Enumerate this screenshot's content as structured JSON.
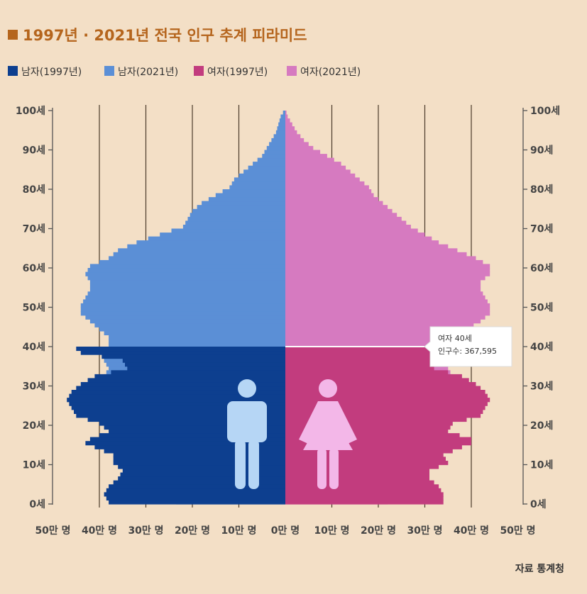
{
  "title": "1997년 · 2021년 전국 인구 추계 피라미드",
  "colors": {
    "background": "#f3dfc6",
    "title": "#b5651d",
    "male_1997": "#0d3f8f",
    "male_2021": "#5b8fd6",
    "female_1997": "#c23c7e",
    "female_2021": "#d67ac0",
    "male_icon": "#b6d6f5",
    "female_icon": "#f3b7e8",
    "gridline": "#4a3a2a"
  },
  "legend": [
    {
      "label": "남자(1997년)",
      "color_key": "male_1997"
    },
    {
      "label": "남자(2021년)",
      "color_key": "male_2021"
    },
    {
      "label": "여자(1997년)",
      "color_key": "female_1997"
    },
    {
      "label": "여자(2021년)",
      "color_key": "female_2021"
    }
  ],
  "tooltip": {
    "line1": "여자 40세",
    "line2": "인구수: 367,595",
    "age": 40
  },
  "source": "자료 통계청",
  "icons": {
    "male": "male-person-icon",
    "female": "female-person-icon"
  },
  "chart_data": {
    "type": "population-pyramid",
    "title": "1997년 · 2021년 전국 인구 추계 피라미드",
    "x_ticks": [
      "50만 명",
      "40만 명",
      "30만 명",
      "20만 명",
      "10만 명",
      "0만 명",
      "10만 명",
      "20만 명",
      "30만 명",
      "40만 명",
      "50만 명"
    ],
    "x_range_man": [
      -50,
      50
    ],
    "y_ticks": [
      "0세",
      "10세",
      "20세",
      "30세",
      "40세",
      "50세",
      "60세",
      "70세",
      "80세",
      "90세",
      "100세"
    ],
    "y_range_age": [
      0,
      100
    ],
    "grid": "vertical",
    "units": "만 명",
    "series": [
      {
        "name": "남자(1997년)",
        "side": "left",
        "ages": [
          0,
          2,
          4,
          6,
          8,
          10,
          12,
          14,
          15,
          16,
          18,
          20,
          22,
          24,
          26,
          28,
          30,
          32,
          34,
          36,
          38,
          39
        ],
        "values": [
          38,
          39,
          38,
          36,
          35,
          37,
          37,
          41,
          43,
          42,
          38,
          40,
          45,
          46,
          47,
          46,
          44,
          41,
          34,
          35,
          44,
          45
        ]
      },
      {
        "name": "남자(2021년)",
        "side": "left",
        "ages": [
          0,
          5,
          10,
          13,
          15,
          16,
          18,
          20,
          22,
          24,
          26,
          28,
          30,
          32,
          34,
          36,
          38,
          40,
          42,
          44,
          46,
          48,
          50,
          52,
          54,
          56,
          58,
          60,
          62,
          64,
          66,
          68,
          70,
          72,
          74,
          76,
          78,
          80,
          82,
          84,
          86,
          88,
          90,
          92,
          94,
          96,
          98,
          100
        ],
        "values": [
          23.5,
          24,
          24,
          25,
          25,
          27,
          30,
          33,
          35,
          36,
          38,
          39,
          40,
          39,
          38,
          39,
          39,
          38,
          38,
          40,
          42,
          44,
          44,
          43,
          42,
          42,
          43,
          42,
          38,
          36,
          32,
          27,
          22,
          21,
          20,
          18,
          15,
          12,
          11,
          9,
          7,
          5,
          4,
          3,
          2,
          1.5,
          1,
          0
        ]
      },
      {
        "name": "여자(1997년)",
        "side": "right",
        "ages": [
          0,
          2,
          4,
          6,
          8,
          10,
          12,
          14,
          15,
          16,
          18,
          20,
          22,
          24,
          26,
          28,
          30,
          32,
          34,
          36,
          38,
          39
        ],
        "values": [
          34,
          34,
          33,
          31,
          31,
          35,
          34,
          38,
          40,
          40,
          35,
          36,
          42,
          43,
          44,
          43,
          41,
          38,
          32,
          33,
          41,
          42
        ]
      },
      {
        "name": "여자(2021년)",
        "side": "right",
        "ages": [
          0,
          5,
          10,
          13,
          15,
          16,
          18,
          20,
          22,
          24,
          26,
          28,
          30,
          32,
          34,
          36,
          38,
          40,
          42,
          44,
          46,
          48,
          50,
          52,
          54,
          56,
          58,
          60,
          62,
          64,
          66,
          68,
          70,
          72,
          74,
          76,
          78,
          80,
          82,
          84,
          86,
          88,
          90,
          92,
          94,
          96,
          98,
          100
        ],
        "values": [
          22,
          22.5,
          23,
          23.5,
          23.5,
          24,
          26,
          28,
          31,
          33,
          35,
          36.5,
          37,
          36,
          35,
          36,
          36.5,
          36.8,
          37,
          39,
          42,
          44,
          44,
          43,
          42,
          42,
          44,
          44,
          41,
          37,
          33,
          30,
          27,
          25,
          23,
          21,
          19,
          18,
          16,
          14,
          12,
          9,
          6,
          4,
          2.5,
          1.5,
          0.5,
          0
        ]
      }
    ]
  }
}
